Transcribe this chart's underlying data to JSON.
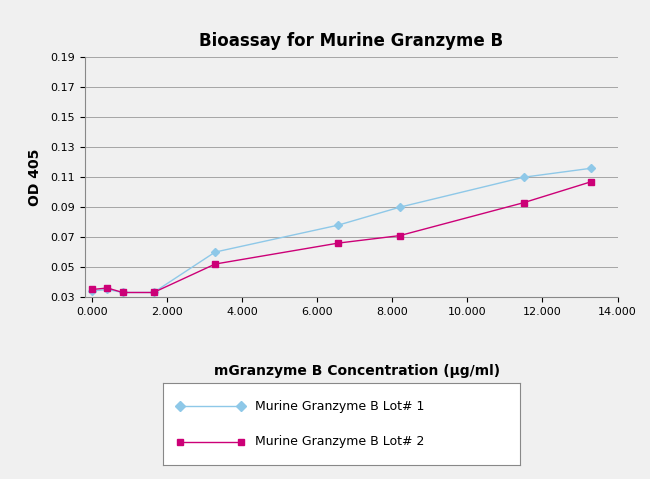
{
  "title": "Bioassay for Murine Granzyme B",
  "xlabel": "mGranzyme B Concentration (μg/ml)",
  "ylabel": "OD 405",
  "lot1": {
    "label": "Murine Granzyme B Lot# 1",
    "color": "#8ec8e8",
    "marker": "D",
    "markersize": 4,
    "x": [
      0.0,
      0.41,
      0.82,
      1.64,
      3.28,
      6.56,
      8.2,
      11.5,
      13.3
    ],
    "y": [
      0.034,
      0.035,
      0.033,
      0.033,
      0.06,
      0.078,
      0.09,
      0.11,
      0.116
    ]
  },
  "lot2": {
    "label": "Murine Granzyme B Lot# 2",
    "color": "#cc0077",
    "marker": "s",
    "markersize": 4,
    "x": [
      0.0,
      0.41,
      0.82,
      1.64,
      3.28,
      6.56,
      8.2,
      11.5,
      13.3
    ],
    "y": [
      0.035,
      0.036,
      0.033,
      0.033,
      0.052,
      0.066,
      0.071,
      0.093,
      0.107
    ]
  },
  "xlim": [
    -0.2,
    14.0
  ],
  "ylim": [
    0.03,
    0.19
  ],
  "yticks": [
    0.03,
    0.05,
    0.07,
    0.09,
    0.11,
    0.13,
    0.15,
    0.17,
    0.19
  ],
  "xticks": [
    0.0,
    2.0,
    4.0,
    6.0,
    8.0,
    10.0,
    12.0,
    14.0
  ],
  "xtick_labels": [
    "0.000",
    "2.000",
    "4.000",
    "6.000",
    "8.000",
    "10.000",
    "12.000",
    "14.000"
  ],
  "background_color": "#f0f0f0",
  "plot_bg_color": "#f0f0f0",
  "grid_color": "#999999",
  "title_fontsize": 12,
  "label_fontsize": 10,
  "tick_fontsize": 8,
  "legend_fontsize": 9
}
